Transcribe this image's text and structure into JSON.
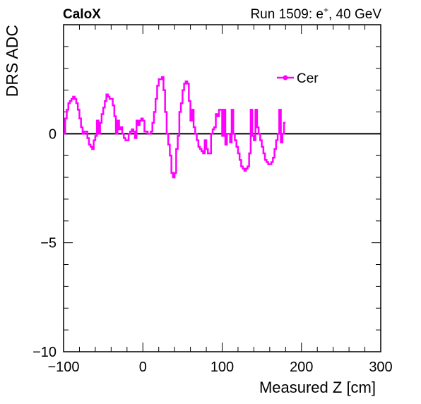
{
  "header": {
    "left": "CaloX",
    "right_prefix": "Run 1509: e",
    "right_sup": "+",
    "right_suffix": ", 40 GeV"
  },
  "chart_data": {
    "type": "line",
    "style": "step",
    "xlabel": "Measured Z [cm]",
    "ylabel": "DRS ADC",
    "xlim": [
      -100,
      300
    ],
    "ylim": [
      -10,
      5
    ],
    "x_ticks": [
      {
        "v": -100,
        "label": "−100"
      },
      {
        "v": 0,
        "label": "0"
      },
      {
        "v": 100,
        "label": "100"
      },
      {
        "v": 200,
        "label": "200"
      },
      {
        "v": 300,
        "label": "300"
      }
    ],
    "y_ticks": [
      {
        "v": -10,
        "label": "−10"
      },
      {
        "v": -5,
        "label": "−5"
      },
      {
        "v": 0,
        "label": "0"
      }
    ],
    "zero_line": true,
    "grid": false,
    "legend": {
      "placement": "top-right",
      "entries": [
        {
          "name": "Cer",
          "color": "#ff00ff"
        }
      ]
    },
    "series": [
      {
        "name": "Cer",
        "color": "#ff00ff",
        "bin_width": 2,
        "x_start": -100,
        "values": [
          0.0,
          0.7,
          1.1,
          1.4,
          1.5,
          1.6,
          1.7,
          1.6,
          1.4,
          1.1,
          0.7,
          0.3,
          0.0,
          0.1,
          0.1,
          -0.2,
          -0.5,
          -0.6,
          -0.7,
          -0.3,
          -0.1,
          0.6,
          0.0,
          0.5,
          0.9,
          1.2,
          1.5,
          1.8,
          1.7,
          1.6,
          1.6,
          1.3,
          0.8,
          0.0,
          0.6,
          0.2,
          0.3,
          0.0,
          -0.2,
          -0.3,
          -0.3,
          0.0,
          0.1,
          0.2,
          0.1,
          -0.2,
          0.6,
          0.4,
          0.6,
          0.7,
          0.6,
          0.1,
          0.1,
          0.0,
          0.0,
          0.1,
          0.5,
          1.0,
          1.6,
          2.2,
          2.5,
          2.5,
          2.6,
          2.0,
          1.0,
          0.0,
          -0.5,
          -1.0,
          -1.8,
          -2.0,
          -1.8,
          -0.7,
          -0.1,
          1.0,
          1.4,
          2.0,
          2.3,
          2.4,
          2.3,
          1.5,
          0.6,
          1.1,
          0.3,
          0.0,
          -0.3,
          -0.6,
          -0.7,
          -0.8,
          -0.9,
          -0.3,
          -0.7,
          -0.9,
          -0.9,
          0.0,
          0.2,
          0.3,
          0.9,
          0.8,
          1.1,
          1.1,
          -0.1,
          1.1,
          -0.5,
          0.0,
          0.0,
          -0.4,
          1.1,
          0.0,
          -0.3,
          -0.6,
          -0.9,
          -1.2,
          -1.5,
          -1.6,
          -1.7,
          -1.6,
          -1.5,
          -0.9,
          1.1,
          -0.1,
          -0.3,
          1.1,
          0.3,
          0.0,
          -0.3,
          -0.6,
          -0.9,
          -1.2,
          -1.3,
          -1.4,
          -1.4,
          -1.3,
          -1.1,
          -0.7,
          -0.3,
          0.0,
          1.1,
          -0.4,
          0.0,
          0.5
        ]
      }
    ]
  }
}
